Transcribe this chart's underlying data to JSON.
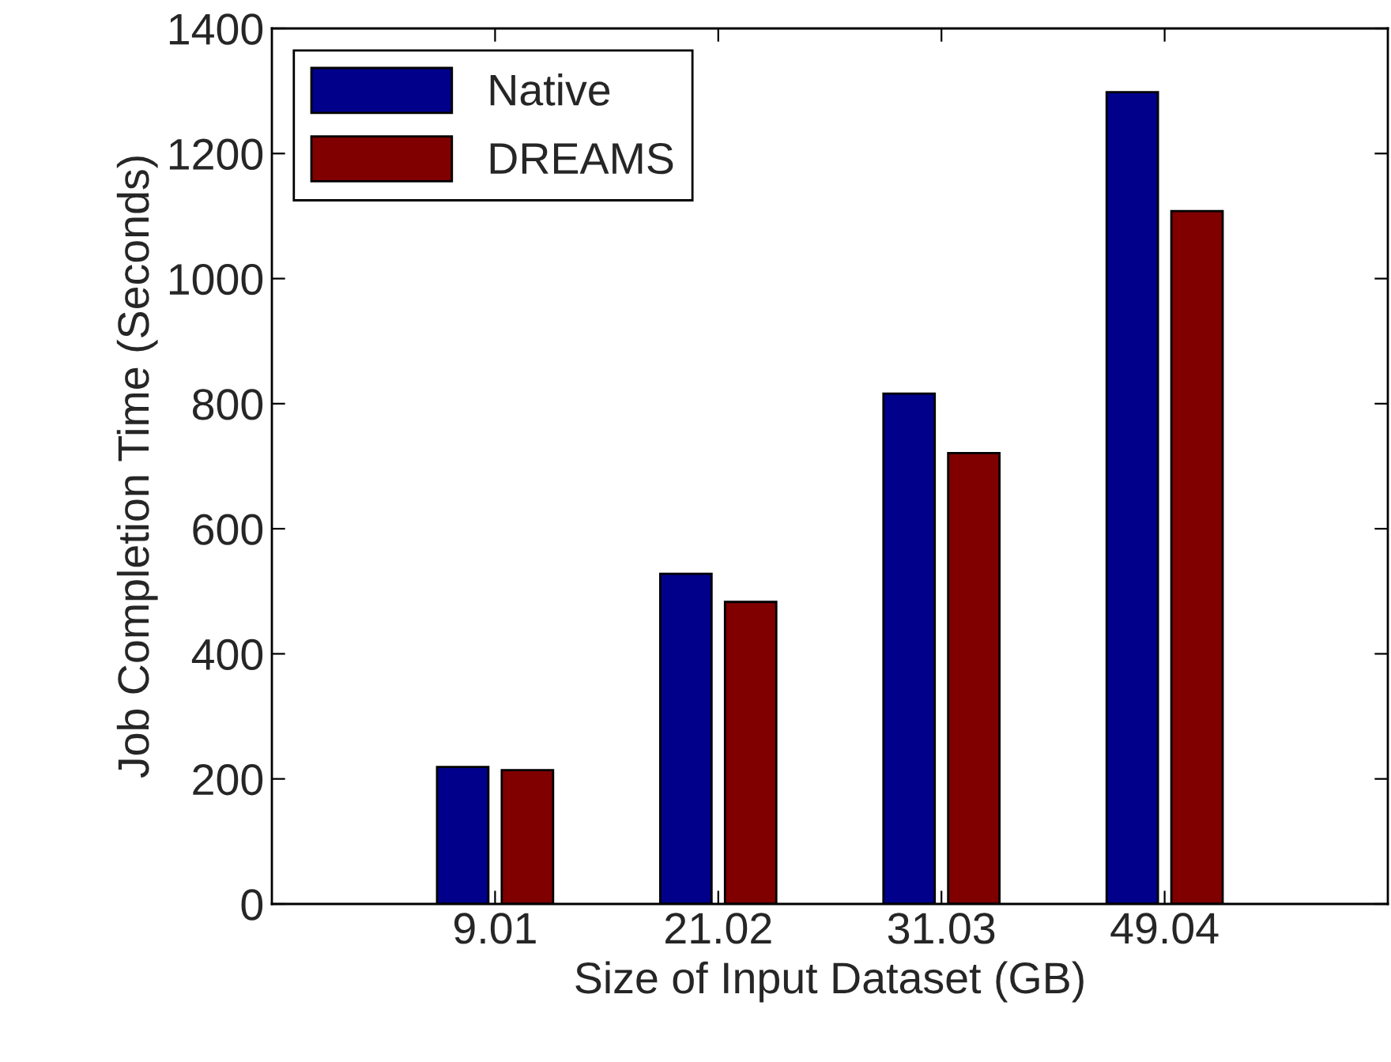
{
  "chart_data": {
    "type": "bar",
    "xlabel": "Size of Input Dataset (GB)",
    "ylabel": "Job Completion Time (Seconds)",
    "categories": [
      "9.01",
      "21.02",
      "31.03",
      "49.04"
    ],
    "series": [
      {
        "name": "Native",
        "color": "#00008b",
        "values": [
          219,
          528,
          816,
          1298
        ]
      },
      {
        "name": "DREAMS",
        "color": "#800000",
        "values": [
          214,
          483,
          721,
          1108
        ]
      }
    ],
    "ylim": [
      0,
      1400
    ],
    "yticks": [
      0,
      200,
      400,
      600,
      800,
      1000,
      1200,
      1400
    ],
    "grid": false,
    "legend": "top left"
  }
}
